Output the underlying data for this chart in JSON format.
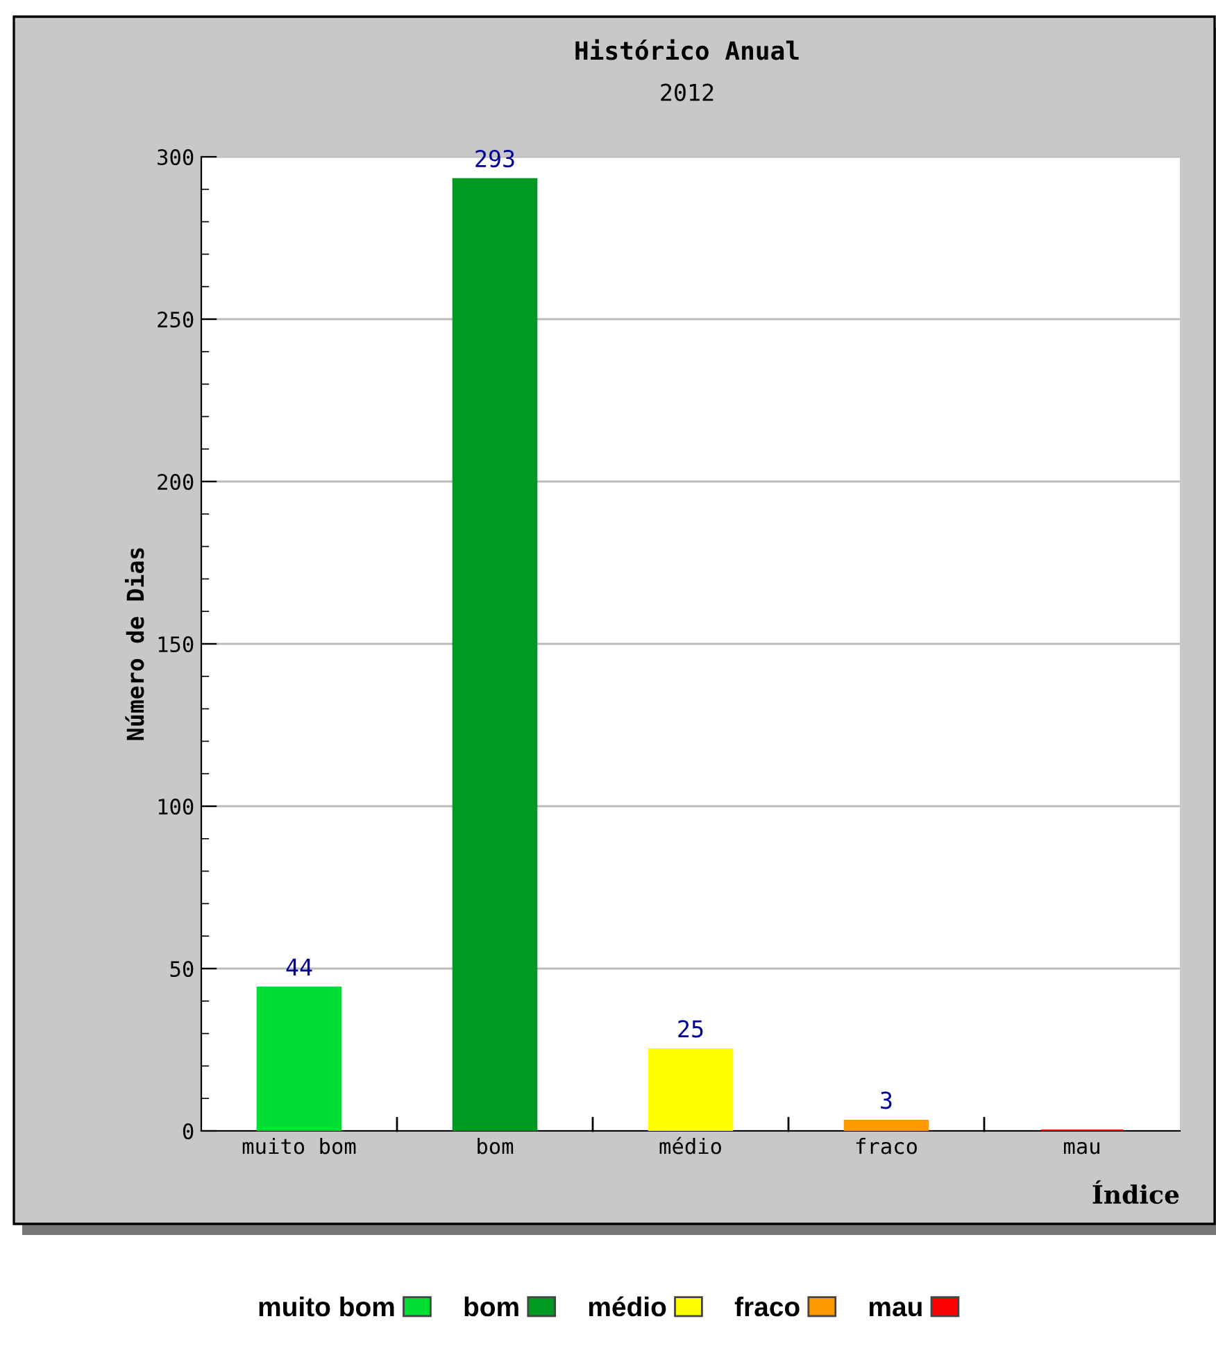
{
  "chart_data": {
    "type": "bar",
    "title": "Histórico Anual",
    "subtitle": "2012",
    "xlabel": "Índice",
    "ylabel": "Número de Dias",
    "categories": [
      "muito bom",
      "bom",
      "médio",
      "fraco",
      "mau"
    ],
    "series": [
      {
        "name": "muito bom",
        "color": "#00dd33",
        "values": [
          44,
          null,
          null,
          null,
          null
        ],
        "value_labels": [
          "44",
          null,
          null,
          null,
          null
        ]
      },
      {
        "name": "bom",
        "color": "#009922",
        "values": [
          null,
          293,
          null,
          null,
          null
        ],
        "value_labels": [
          null,
          "293",
          null,
          null,
          null
        ]
      },
      {
        "name": "médio",
        "color": "#ffff00",
        "values": [
          null,
          null,
          25,
          null,
          null
        ],
        "value_labels": [
          null,
          null,
          "25",
          null,
          null
        ]
      },
      {
        "name": "fraco",
        "color": "#ff9900",
        "values": [
          null,
          null,
          null,
          3,
          null
        ],
        "value_labels": [
          null,
          null,
          null,
          "3",
          null
        ]
      },
      {
        "name": "mau",
        "color": "#ff0000",
        "values": [
          null,
          null,
          null,
          null,
          0
        ],
        "value_labels": [
          null,
          null,
          null,
          null,
          null
        ]
      }
    ],
    "ylim": [
      0,
      300
    ],
    "yticks": [
      0,
      50,
      100,
      150,
      200,
      250,
      300
    ],
    "grid": "y",
    "legend": "bottom"
  }
}
